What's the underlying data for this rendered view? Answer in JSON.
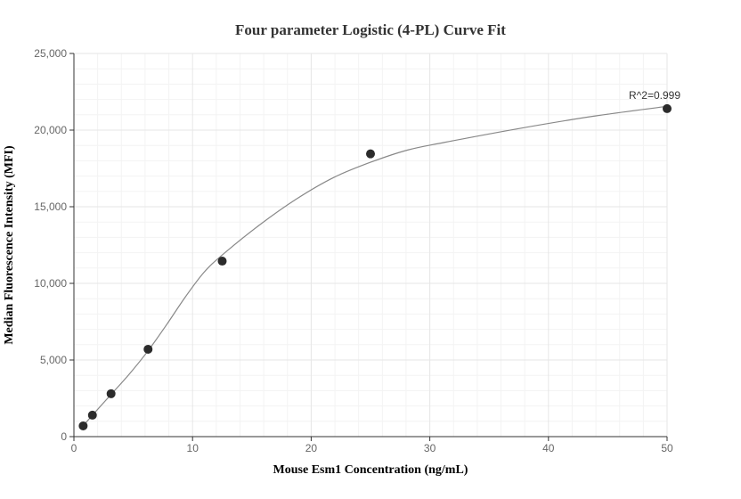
{
  "chart_data": {
    "type": "scatter",
    "title": "Four parameter Logistic (4-PL) Curve Fit",
    "xlabel": "Mouse Esm1 Concentration (ng/mL)",
    "ylabel": "Median Fluorescence Intensity (MFI)",
    "xlim": [
      0,
      50
    ],
    "ylim": [
      0,
      25000
    ],
    "x_ticks": [
      0,
      10,
      20,
      30,
      40,
      50
    ],
    "y_ticks": [
      0,
      5000,
      10000,
      15000,
      20000,
      25000
    ],
    "x_tick_labels": [
      "0",
      "10",
      "20",
      "30",
      "40",
      "50"
    ],
    "y_tick_labels": [
      "0",
      "5,000",
      "10,000",
      "15,000",
      "20,000",
      "25,000"
    ],
    "grid": true,
    "series": [
      {
        "type": "scatter",
        "x": [
          0.78,
          1.56,
          3.13,
          6.25,
          12.5,
          25,
          50
        ],
        "y": [
          700,
          1400,
          2800,
          5700,
          11450,
          18450,
          21400
        ],
        "color": "#2b2b2b"
      },
      {
        "type": "line",
        "x": [
          0.78,
          1.56,
          3.13,
          4.69,
          6.25,
          7.81,
          9.38,
          10.94,
          12.5,
          15.63,
          18.75,
          21.88,
          25,
          28.13,
          31.25,
          37.5,
          43.75,
          50
        ],
        "y": [
          700,
          1400,
          2750,
          4100,
          5600,
          7300,
          9100,
          10700,
          11850,
          13800,
          15500,
          16900,
          17900,
          18700,
          19200,
          20100,
          20900,
          21550
        ],
        "color": "#888888"
      }
    ],
    "annotations": [
      {
        "text": "R^2=0.999",
        "x": 50,
        "y": 21400
      }
    ]
  }
}
